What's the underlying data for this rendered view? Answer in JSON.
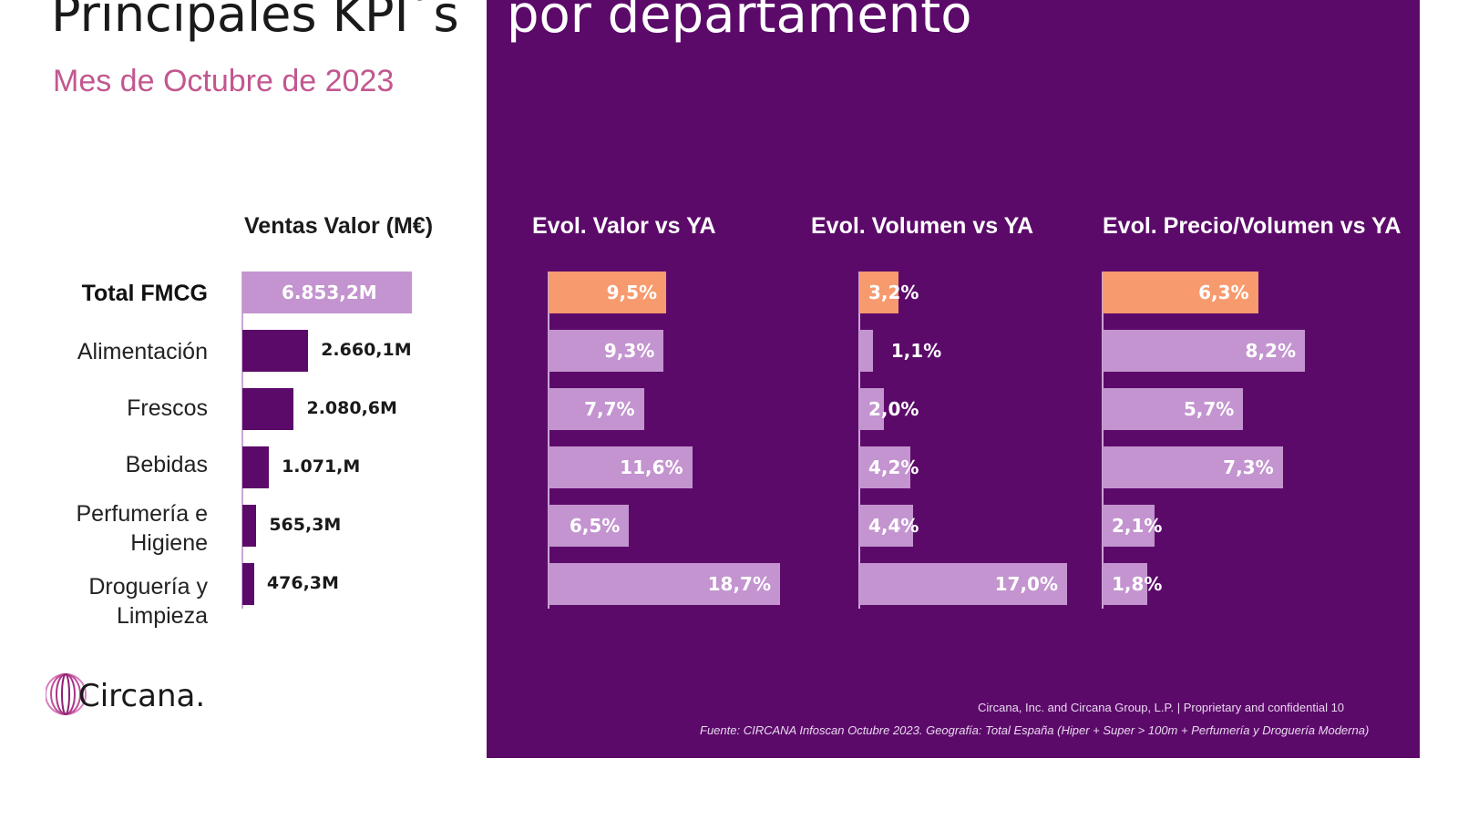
{
  "header": {
    "title_left": "Principales KPI´s",
    "title_right": "por departamento",
    "subtitle": "Mes de Octubre de 2023"
  },
  "colors": {
    "panel": "#5c0a6a",
    "highlight": "#f79a6e",
    "bar_light": "#c394cf",
    "bar_dark": "#5c0a6a",
    "subtitle": "#c2578f"
  },
  "categories": [
    {
      "label": "Total FMCG",
      "bold": true
    },
    {
      "label": "Alimentación",
      "bold": false
    },
    {
      "label": "Frescos",
      "bold": false
    },
    {
      "label": "Bebidas",
      "bold": false
    },
    {
      "label": "Perfumería e Higiene",
      "bold": false
    },
    {
      "label": "Droguería y Limpieza",
      "bold": false
    }
  ],
  "chart_data": [
    {
      "type": "bar",
      "title": "Ventas Valor (M€)",
      "categories": [
        "Total FMCG",
        "Alimentación",
        "Frescos",
        "Bebidas",
        "Perfumería e Higiene",
        "Droguería y Limpieza"
      ],
      "values": [
        6853.2,
        2660.1,
        2080.6,
        1071,
        565.3,
        476.3
      ],
      "labels": [
        "6.853,2M",
        "2.660,1M",
        "2.080,6M",
        "1.071,M",
        "565,3M",
        "476,3M"
      ],
      "xlim": [
        0,
        6853.2
      ]
    },
    {
      "type": "bar",
      "title": "Evol. Valor vs YA",
      "categories": [
        "Total FMCG",
        "Alimentación",
        "Frescos",
        "Bebidas",
        "Perfumería e Higiene",
        "Droguería y Limpieza"
      ],
      "values": [
        9.5,
        9.3,
        7.7,
        11.6,
        6.5,
        18.7
      ],
      "labels": [
        "9,5%",
        "9,3%",
        "7,7%",
        "11,6%",
        "6,5%",
        "18,7%"
      ],
      "xlim": [
        0,
        18.7
      ]
    },
    {
      "type": "bar",
      "title": "Evol. Volumen vs YA",
      "categories": [
        "Total FMCG",
        "Alimentación",
        "Frescos",
        "Bebidas",
        "Perfumería e Higiene",
        "Droguería y Limpieza"
      ],
      "values": [
        3.2,
        1.1,
        2.0,
        4.2,
        4.4,
        17.0
      ],
      "labels": [
        "3,2%",
        "1,1%",
        "2,0%",
        "4,2%",
        "4,4%",
        "17,0%"
      ],
      "xlim": [
        0,
        17.0
      ]
    },
    {
      "type": "bar",
      "title": "Evol. Precio/Volumen vs YA",
      "categories": [
        "Total FMCG",
        "Alimentación",
        "Frescos",
        "Bebidas",
        "Perfumería e Higiene",
        "Droguería y Limpieza"
      ],
      "values": [
        6.3,
        8.2,
        5.7,
        7.3,
        2.1,
        1.8
      ],
      "labels": [
        "6,3%",
        "8,2%",
        "5,7%",
        "7,3%",
        "2,1%",
        "1,8%"
      ],
      "xlim": [
        0,
        8.2
      ]
    }
  ],
  "footer": {
    "line1": "Circana, Inc. and Circana Group, L.P. |  Proprietary and confidential     10",
    "line2": "Fuente: CIRCANA Infoscan Octubre 2023. Geografía: Total España (Hiper + Super > 100m + Perfumería y Droguería Moderna)"
  },
  "logo": {
    "text": "Circana."
  }
}
